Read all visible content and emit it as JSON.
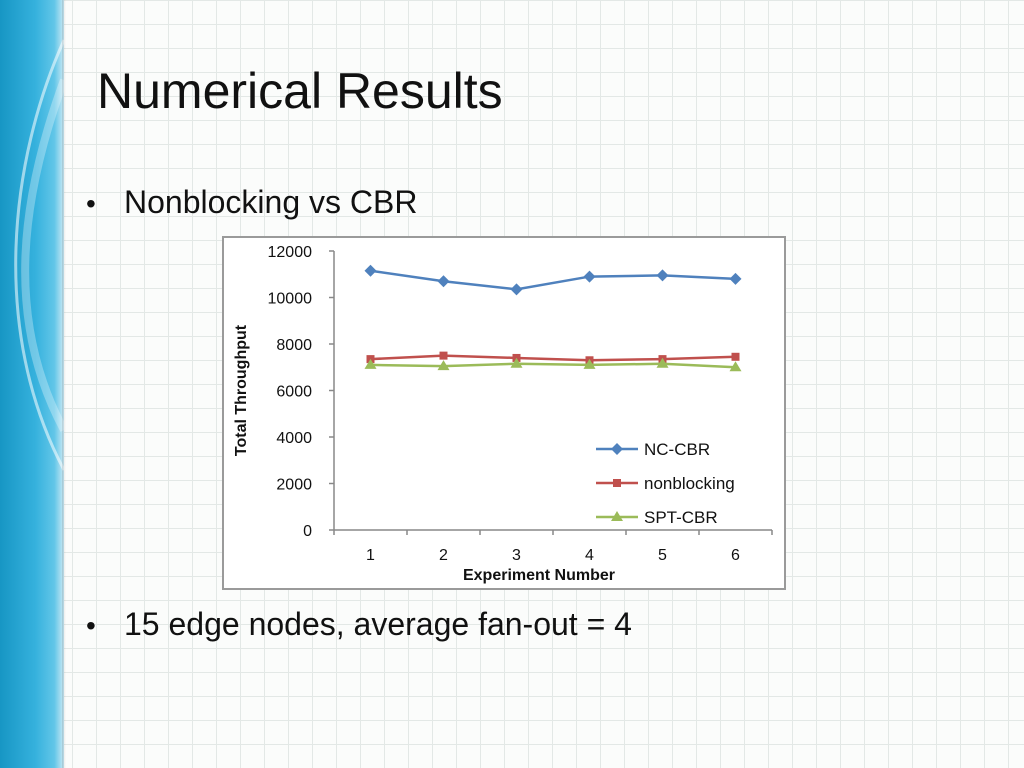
{
  "slide": {
    "title": "Numerical Results",
    "bullets": [
      "Nonblocking vs CBR",
      "15 edge nodes, average fan-out = 4"
    ],
    "bullet_symbol": "•"
  },
  "colors": {
    "band": "#35b1dd",
    "nc_cbr": "#4f81bd",
    "nonblocking": "#c0504d",
    "spt_cbr": "#9bbb59"
  },
  "chart_data": {
    "type": "line",
    "xlabel": "Experiment Number",
    "ylabel": "Total Throughput",
    "categories": [
      "1",
      "2",
      "3",
      "4",
      "5",
      "6"
    ],
    "ylim": [
      0,
      12000
    ],
    "yticks": [
      "0",
      "2000",
      "4000",
      "6000",
      "8000",
      "10000",
      "12000"
    ],
    "grid": false,
    "legend_position": "bottom-right",
    "series": [
      {
        "name": "NC-CBR",
        "marker": "diamond",
        "color": "#4f81bd",
        "values": [
          11150,
          10700,
          10350,
          10900,
          10950,
          10800
        ]
      },
      {
        "name": "nonblocking",
        "marker": "square",
        "color": "#c0504d",
        "values": [
          7350,
          7500,
          7400,
          7300,
          7350,
          7450
        ]
      },
      {
        "name": "SPT-CBR",
        "marker": "triangle",
        "color": "#9bbb59",
        "values": [
          7100,
          7050,
          7150,
          7100,
          7150,
          7000
        ]
      }
    ]
  }
}
